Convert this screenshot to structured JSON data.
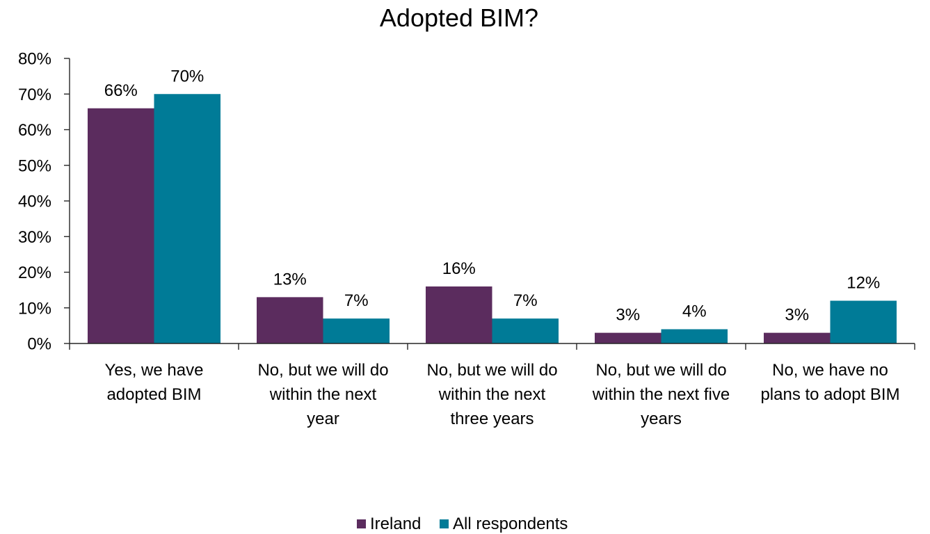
{
  "chart_data": {
    "type": "bar",
    "title": "Adopted BIM?",
    "categories": [
      "Yes, we have adopted BIM",
      "No, but we will do within the next year",
      "No, but we will do within the next three years",
      "No, but we will do within the next five years",
      "No, we have no plans to adopt BIM"
    ],
    "series": [
      {
        "name": "Ireland",
        "color": "#5B2C5E",
        "values": [
          66,
          13,
          16,
          3,
          3
        ],
        "value_labels": [
          "66%",
          "13%",
          "16%",
          "3%",
          "3%"
        ]
      },
      {
        "name": "All respondents",
        "color": "#007B97",
        "values": [
          70,
          7,
          7,
          4,
          12
        ],
        "value_labels": [
          "70%",
          "7%",
          "7%",
          "4%",
          "12%"
        ]
      }
    ],
    "ylim": [
      0,
      80
    ],
    "yticks": {
      "values": [
        0,
        10,
        20,
        30,
        40,
        50,
        60,
        70,
        80
      ],
      "labels": [
        "0%",
        "10%",
        "20%",
        "30%",
        "40%",
        "50%",
        "60%",
        "70%",
        "80%"
      ]
    },
    "grid": false,
    "legend": "bottom"
  }
}
